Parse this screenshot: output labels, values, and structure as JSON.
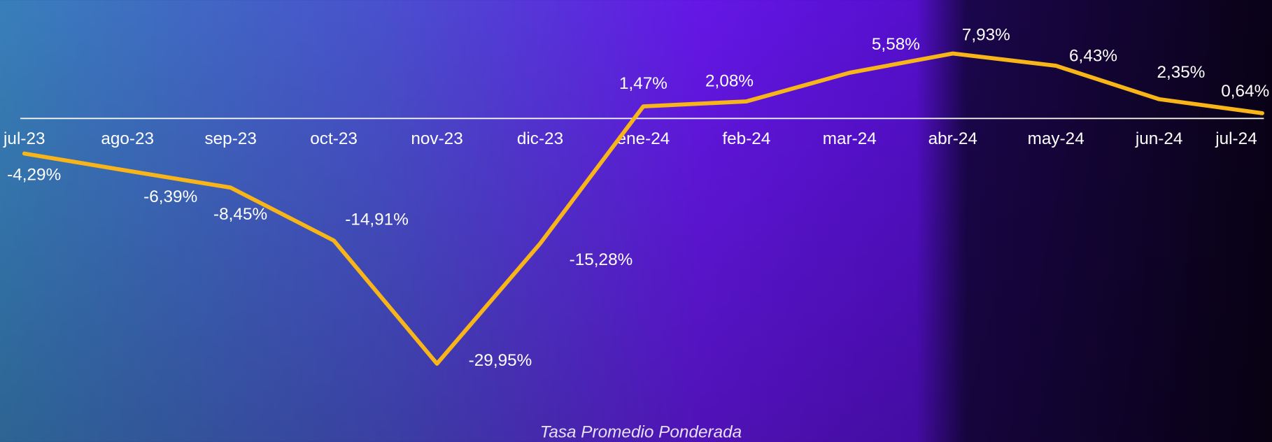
{
  "chart_data": {
    "type": "line",
    "title": "Tasa Promedio Ponderada",
    "categories": [
      "jul-23",
      "ago-23",
      "sep-23",
      "oct-23",
      "nov-23",
      "dic-23",
      "ene-24",
      "feb-24",
      "mar-24",
      "abr-24",
      "may-24",
      "jun-24",
      "jul-24"
    ],
    "series": [
      {
        "name": "Tasa Promedio Ponderada",
        "color": "#f7b519",
        "values": [
          -4.29,
          -6.39,
          -8.45,
          -14.91,
          -29.95,
          -15.28,
          1.47,
          2.08,
          5.58,
          7.93,
          6.43,
          2.35,
          0.64
        ],
        "value_labels": [
          "-4,29%",
          "-6,39%",
          "-8,45%",
          "-14,91%",
          "-29,95%",
          "-15,28%",
          "1,47%",
          "2,08%",
          "5,58%",
          "7,93%",
          "6,43%",
          "2,35%",
          "0,64%"
        ]
      }
    ],
    "ylim": [
      -35,
      10
    ]
  }
}
